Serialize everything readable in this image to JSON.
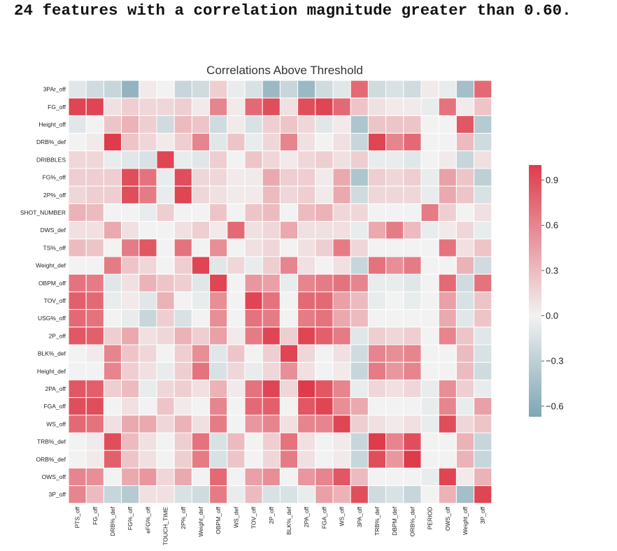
{
  "headline": "24 features with a correlation magnitude greater than 0.60.",
  "chart_data": {
    "type": "heatmap",
    "title": "Correlations Above Threshold",
    "row_labels": [
      "3PAr_off",
      "FG_off",
      "Height_off",
      "DRB%_def",
      "DRIBBLES",
      "FG%_off",
      "2P%_off",
      "SHOT_NUMBER",
      "DWS_def",
      "TS%_off",
      "Weight_def",
      "OBPM_off",
      "TOV_off",
      "USG%_off",
      "2P_off",
      "BLK%_def",
      "Height_def",
      "2PA_off",
      "FGA_off",
      "WS_off",
      "TRB%_def",
      "ORB%_def",
      "OWS_off",
      "3P_off"
    ],
    "col_labels": [
      "PTS_off",
      "FG_off",
      "DRB%_def",
      "FG%_off",
      "eFG%_off",
      "TOUCH_TIME",
      "2P%_off",
      "Weight_def",
      "OBPM_off",
      "WS_def",
      "TOV_off",
      "2P_off",
      "BLK%_def",
      "2PA_off",
      "FGA_off",
      "WS_off",
      "3PA_off",
      "TRB%_def",
      "DBPM_def",
      "ORB%_def",
      "PERIOD",
      "OWS_off",
      "Weight_off",
      "3P_off"
    ],
    "values": [
      [
        -0.1,
        -0.2,
        -0.25,
        -0.55,
        0.05,
        0,
        -0.25,
        -0.2,
        0.2,
        -0.05,
        -0.15,
        -0.5,
        -0.25,
        -0.5,
        -0.2,
        -0.1,
        0.75,
        -0.2,
        -0.15,
        -0.2,
        0.05,
        -0.05,
        -0.45,
        0.75
      ],
      [
        0.95,
        0.95,
        0.1,
        0.2,
        0.15,
        0.15,
        0.2,
        0.05,
        0.6,
        0.05,
        0.75,
        0.9,
        0.1,
        0.9,
        0.95,
        0.75,
        0.25,
        0.1,
        0.05,
        0.05,
        -0.05,
        0.7,
        0.05,
        0.25
      ],
      [
        -0.1,
        0,
        0.25,
        0.35,
        0.2,
        -0.2,
        0.3,
        0.25,
        -0.2,
        0.05,
        -0.15,
        0.2,
        0.25,
        0.15,
        -0.1,
        0.05,
        -0.4,
        0.25,
        0.25,
        0.25,
        0,
        0,
        0.85,
        -0.35
      ],
      [
        0,
        0.05,
        1,
        0.25,
        0.15,
        0.05,
        0.2,
        0.6,
        -0.1,
        0.25,
        -0.05,
        0.15,
        0.6,
        0.1,
        0,
        0.1,
        -0.25,
        0.95,
        0.6,
        0.75,
        0,
        0,
        0.3,
        -0.2
      ],
      [
        0.15,
        0.15,
        -0.05,
        -0.1,
        -0.15,
        0.95,
        -0.05,
        -0.1,
        0.2,
        0,
        0.25,
        0.15,
        0.05,
        0.15,
        0.2,
        0.1,
        0.2,
        -0.05,
        -0.05,
        -0.1,
        0,
        0.05,
        -0.25,
        0.1
      ],
      [
        0.2,
        0.2,
        0.2,
        0.9,
        0.7,
        -0.05,
        0.9,
        0.15,
        0.15,
        0.05,
        0.05,
        0.4,
        0.2,
        0.2,
        0.05,
        0.4,
        -0.4,
        0.2,
        0.15,
        0.2,
        -0.05,
        0.45,
        0.25,
        -0.3
      ],
      [
        0.15,
        0.2,
        0.2,
        0.9,
        0.65,
        -0.05,
        0.95,
        0.15,
        0.1,
        0.05,
        0.05,
        0.3,
        0.15,
        0.2,
        0.05,
        0.4,
        -0.2,
        0.15,
        0.15,
        0.15,
        -0.05,
        0.4,
        0.25,
        -0.15
      ],
      [
        0.35,
        0.3,
        0,
        0,
        -0.05,
        0.2,
        0,
        0,
        0.25,
        0,
        0.25,
        0.3,
        0,
        0.3,
        0.35,
        0.15,
        0.15,
        0,
        0,
        0,
        0.65,
        0.2,
        0,
        0.1
      ],
      [
        0.1,
        0.1,
        0.4,
        0.1,
        0,
        0,
        0.1,
        0.2,
        0.05,
        0.75,
        0.1,
        0.15,
        0.4,
        0.1,
        0.1,
        0.1,
        -0.05,
        0.4,
        0.65,
        0.3,
        -0.05,
        0.05,
        0.15,
        -0.05
      ],
      [
        0.3,
        0.25,
        0,
        0.65,
        0.85,
        0,
        0.7,
        0,
        0.55,
        0,
        0.1,
        0.15,
        0,
        0.1,
        0.2,
        0.65,
        0.15,
        0,
        0,
        0,
        0,
        0.7,
        0.1,
        0.25
      ],
      [
        0,
        0,
        0.65,
        0.25,
        0.15,
        0,
        0.2,
        0.95,
        -0.1,
        0.15,
        -0.05,
        0.2,
        0.6,
        0.1,
        0,
        0.1,
        -0.25,
        0.7,
        0.55,
        0.65,
        0,
        0,
        0.35,
        -0.2
      ],
      [
        0.7,
        0.65,
        -0.1,
        0.1,
        0.35,
        0.25,
        0.2,
        -0.1,
        0.95,
        0,
        0.5,
        0.45,
        -0.05,
        0.6,
        0.65,
        0.7,
        0.6,
        -0.05,
        -0.05,
        -0.1,
        0,
        0.75,
        -0.2,
        0.7
      ],
      [
        0.8,
        0.75,
        -0.05,
        0.05,
        -0.1,
        0.35,
        0,
        -0.05,
        0.55,
        0,
        0.95,
        0.7,
        0,
        0.75,
        0.75,
        0.45,
        0.3,
        -0.05,
        0,
        -0.05,
        0,
        0.45,
        -0.15,
        0.25
      ],
      [
        0.75,
        0.7,
        0,
        -0.05,
        -0.25,
        0.2,
        -0.15,
        0,
        0.55,
        0,
        0.7,
        0.65,
        0,
        0.65,
        0.7,
        0.4,
        0.3,
        0,
        0,
        0,
        0,
        0.4,
        -0.1,
        0.25
      ],
      [
        0.85,
        0.8,
        0.2,
        0.4,
        0.1,
        0.15,
        0.35,
        0.2,
        0.45,
        0.05,
        0.65,
        0.95,
        0.2,
        0.95,
        0.8,
        0.65,
        -0.1,
        0.2,
        0.15,
        0.2,
        0,
        0.6,
        0.25,
        -0.1
      ],
      [
        0,
        0.05,
        0.6,
        0.25,
        0.15,
        0,
        0.2,
        0.55,
        -0.1,
        0.25,
        0,
        0.2,
        0.95,
        0.15,
        0,
        0.1,
        -0.2,
        0.6,
        0.55,
        0.6,
        0,
        0,
        0.3,
        -0.15
      ],
      [
        0,
        0,
        0.6,
        0.2,
        0.1,
        -0.05,
        0.2,
        0.7,
        -0.15,
        0.15,
        -0.05,
        0.15,
        0.55,
        0.1,
        0,
        0.05,
        -0.25,
        0.65,
        0.5,
        0.6,
        0,
        0,
        0.3,
        -0.2
      ],
      [
        0.85,
        0.8,
        0.2,
        0.3,
        -0.05,
        0.15,
        0.2,
        0.1,
        0.35,
        0.05,
        0.7,
        0.95,
        0.15,
        1,
        0.85,
        0.6,
        -0.05,
        0.15,
        0.1,
        0.15,
        -0.05,
        0.55,
        0.2,
        -0.05
      ],
      [
        0.9,
        0.9,
        0,
        0.1,
        0,
        0.25,
        0.05,
        0,
        0.6,
        0,
        0.75,
        0.8,
        0,
        0.85,
        0.95,
        0.55,
        0.4,
        0,
        0,
        0,
        -0.05,
        0.6,
        -0.05,
        0.45
      ],
      [
        0.75,
        0.7,
        0.1,
        0.4,
        0.4,
        0.15,
        0.35,
        0.1,
        0.65,
        0,
        0.5,
        0.6,
        0.1,
        0.6,
        0.6,
        0.95,
        0.2,
        0.1,
        0.05,
        0.1,
        -0.05,
        0.9,
        0.15,
        0.25
      ],
      [
        0,
        0.05,
        0.9,
        0.3,
        0.1,
        0,
        0.2,
        0.7,
        -0.15,
        0.3,
        0,
        0.2,
        0.7,
        0.1,
        0,
        0.05,
        -0.25,
        1,
        0.6,
        0.9,
        0,
        0,
        0.35,
        -0.25
      ],
      [
        0,
        0.05,
        0.8,
        0.25,
        0.1,
        0,
        0.2,
        0.65,
        -0.15,
        0.25,
        0,
        0.15,
        0.65,
        0.1,
        0,
        0.05,
        -0.25,
        0.9,
        0.5,
        1,
        0,
        0,
        0.35,
        -0.25
      ],
      [
        0.6,
        0.55,
        0,
        0.4,
        0.5,
        0.15,
        0.4,
        0,
        0.75,
        0,
        0.45,
        0.55,
        0,
        0.5,
        0.6,
        0.85,
        0.3,
        0,
        0,
        0,
        -0.05,
        0.95,
        0.05,
        0.35
      ],
      [
        0.6,
        0.3,
        -0.25,
        -0.35,
        0.1,
        0.1,
        -0.15,
        -0.2,
        0.65,
        -0.05,
        0.3,
        -0.15,
        -0.15,
        -0.05,
        0.45,
        0.35,
        0.9,
        -0.2,
        -0.15,
        -0.25,
        0,
        0.35,
        -0.45,
        0.95
      ]
    ],
    "colorbar": {
      "min": -0.67,
      "max": 1.0,
      "ticks": [
        "0.9",
        "0.6",
        "0.3",
        "0.0",
        "−0.3",
        "−0.6"
      ],
      "tick_values": [
        0.9,
        0.6,
        0.3,
        0,
        -0.3,
        -0.6
      ]
    },
    "colors": {
      "negative": "#7ea6b3",
      "neutral": "#f2f2f2",
      "positive": "#de3c4b"
    }
  }
}
